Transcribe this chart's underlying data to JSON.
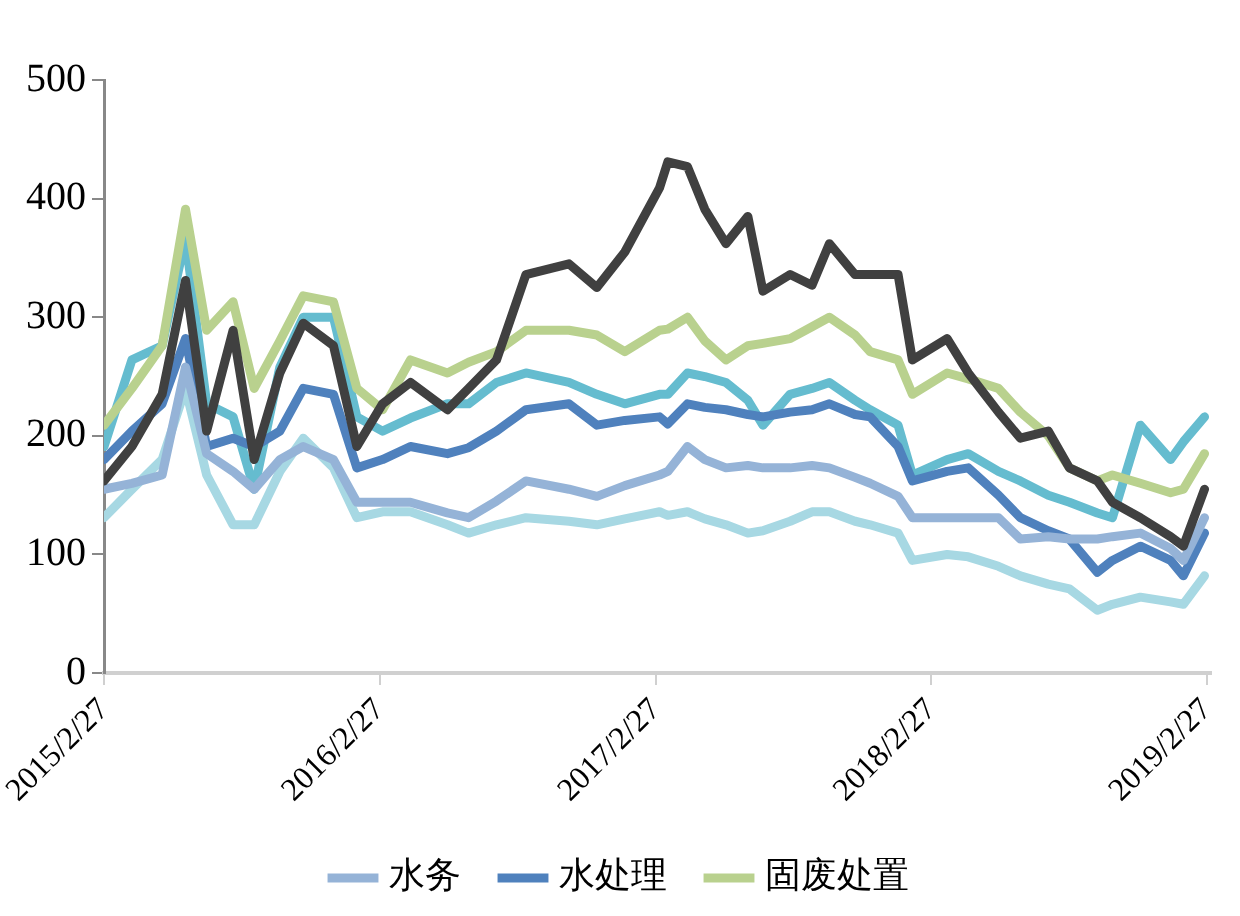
{
  "chart_data": {
    "type": "line",
    "x": [
      "2015-02-27",
      "2015-04-05",
      "2015-05-15",
      "2015-06-15",
      "2015-07-13",
      "2015-08-17",
      "2015-09-14",
      "2015-10-18",
      "2015-11-18",
      "2015-12-28",
      "2016-01-28",
      "2016-03-02",
      "2016-04-08",
      "2016-05-27",
      "2016-06-24",
      "2016-07-31",
      "2016-09-08",
      "2016-11-04",
      "2016-12-11",
      "2017-01-17",
      "2017-03-04",
      "2017-03-15",
      "2017-04-10",
      "2017-05-03",
      "2017-05-31",
      "2017-06-29",
      "2017-07-19",
      "2017-08-24",
      "2017-09-22",
      "2017-10-15",
      "2017-11-18",
      "2017-12-08",
      "2018-01-14",
      "2018-02-02",
      "2018-03-20",
      "2018-04-17",
      "2018-05-27",
      "2018-06-25",
      "2018-08-01",
      "2018-08-29",
      "2018-10-05",
      "2018-10-25",
      "2018-12-01",
      "2019-01-10",
      "2019-01-27",
      "2019-02-24"
    ],
    "series": [
      {
        "color": "#404040",
        "values": [
          162,
          191,
          235,
          331,
          204,
          289,
          180,
          253,
          295,
          276,
          191,
          227,
          245,
          222,
          240,
          264,
          336,
          345,
          325,
          355,
          409,
          431,
          427,
          391,
          362,
          385,
          322,
          336,
          327,
          362,
          336,
          336,
          336,
          264,
          282,
          253,
          220,
          198,
          204,
          173,
          162,
          144,
          131,
          115,
          107,
          155
        ]
      },
      {
        "name": "水务",
        "color": "#95b3d7",
        "values": [
          155,
          160,
          167,
          258,
          185,
          170,
          155,
          180,
          191,
          180,
          144,
          144,
          144,
          135,
          131,
          145,
          162,
          155,
          149,
          158,
          167,
          170,
          191,
          180,
          173,
          175,
          173,
          173,
          175,
          173,
          165,
          160,
          149,
          131,
          131,
          131,
          131,
          113,
          115,
          113,
          113,
          115,
          118,
          105,
          95,
          131
        ]
      },
      {
        "name": "水处理",
        "color": "#4f81bd",
        "values": [
          180,
          204,
          227,
          282,
          191,
          198,
          191,
          204,
          240,
          235,
          173,
          180,
          191,
          185,
          190,
          204,
          222,
          227,
          209,
          213,
          216,
          210,
          227,
          224,
          222,
          218,
          216,
          220,
          222,
          227,
          218,
          216,
          191,
          162,
          170,
          173,
          150,
          131,
          120,
          113,
          85,
          95,
          107,
          95,
          82,
          118
        ]
      },
      {
        "name": "固废处置",
        "color": "#b9d18e",
        "values": [
          209,
          240,
          276,
          391,
          289,
          313,
          240,
          280,
          318,
          313,
          240,
          222,
          264,
          253,
          262,
          271,
          289,
          289,
          285,
          271,
          289,
          290,
          300,
          280,
          264,
          276,
          278,
          282,
          292,
          300,
          285,
          271,
          264,
          235,
          253,
          248,
          240,
          220,
          200,
          173,
          162,
          167,
          160,
          152,
          155,
          185
        ]
      },
      {
        "color": "#65bccf",
        "values": [
          191,
          264,
          276,
          367,
          227,
          216,
          155,
          258,
          300,
          300,
          216,
          204,
          215,
          227,
          227,
          245,
          253,
          245,
          235,
          227,
          235,
          235,
          253,
          250,
          245,
          230,
          209,
          235,
          240,
          245,
          230,
          222,
          209,
          167,
          180,
          185,
          170,
          162,
          150,
          144,
          135,
          131,
          209,
          180,
          195,
          216
        ]
      },
      {
        "color": "#a7d8e3",
        "values": [
          131,
          155,
          180,
          240,
          167,
          125,
          125,
          170,
          198,
          173,
          131,
          136,
          136,
          125,
          118,
          125,
          131,
          128,
          125,
          130,
          136,
          133,
          136,
          130,
          125,
          118,
          120,
          128,
          136,
          136,
          128,
          125,
          118,
          95,
          100,
          98,
          90,
          82,
          75,
          71,
          53,
          58,
          64,
          60,
          58,
          82
        ]
      }
    ],
    "xlim": [
      "2015-02-27",
      "2019-03-05"
    ],
    "xticks": [
      {
        "value": "2015-02-27",
        "label": "2015/2/27"
      },
      {
        "value": "2016-02-27",
        "label": "2016/2/27"
      },
      {
        "value": "2017-02-27",
        "label": "2017/2/27"
      },
      {
        "value": "2018-02-27",
        "label": "2018/2/27"
      },
      {
        "value": "2019-02-27",
        "label": "2019/2/27"
      }
    ],
    "ylim": [
      0,
      500
    ],
    "yticks": [
      0,
      100,
      200,
      300,
      400,
      500
    ],
    "grid": false,
    "legend": "bottom"
  }
}
